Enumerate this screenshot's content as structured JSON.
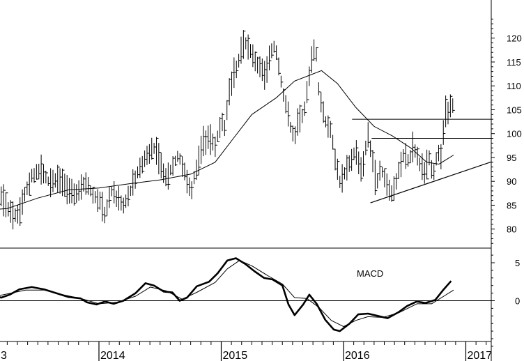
{
  "chart_data": [
    {
      "type": "ohlc",
      "panel": "price",
      "ylim": [
        75,
        125
      ],
      "yticks": [
        "80",
        "85",
        "90",
        "95",
        "100",
        "105",
        "110",
        "115",
        "120"
      ],
      "grid": false,
      "moving_average": [
        [
          2012.97,
          83
        ],
        [
          2013.1,
          84
        ],
        [
          2013.25,
          84.3
        ],
        [
          2013.5,
          86.5
        ],
        [
          2013.75,
          88.2
        ],
        [
          2014.0,
          88.6
        ],
        [
          2014.25,
          89.5
        ],
        [
          2014.5,
          90.3
        ],
        [
          2014.75,
          91.5
        ],
        [
          2014.95,
          94
        ],
        [
          2015.1,
          99
        ],
        [
          2015.25,
          104
        ],
        [
          2015.45,
          107.5
        ],
        [
          2015.6,
          111
        ],
        [
          2015.75,
          112.5
        ],
        [
          2015.82,
          113.2
        ],
        [
          2015.95,
          110.5
        ],
        [
          2016.1,
          105.5
        ],
        [
          2016.25,
          101.5
        ],
        [
          2016.4,
          99.5
        ],
        [
          2016.55,
          97
        ],
        [
          2016.68,
          94
        ],
        [
          2016.78,
          93.6
        ],
        [
          2016.9,
          95.5
        ]
      ],
      "price_path": [
        [
          2012.97,
          85
        ],
        [
          2013.05,
          82
        ],
        [
          2013.13,
          84
        ],
        [
          2013.2,
          87
        ],
        [
          2013.27,
          83.5
        ],
        [
          2013.33,
          82.5
        ],
        [
          2013.4,
          87.5
        ],
        [
          2013.45,
          91
        ],
        [
          2013.52,
          92.5
        ],
        [
          2013.6,
          89.5
        ],
        [
          2013.67,
          90.5
        ],
        [
          2013.75,
          88
        ],
        [
          2013.8,
          87
        ],
        [
          2013.85,
          88.5
        ],
        [
          2013.9,
          90
        ],
        [
          2013.95,
          87
        ],
        [
          2014.0,
          86
        ],
        [
          2014.05,
          83
        ],
        [
          2014.1,
          88
        ],
        [
          2014.15,
          86.5
        ],
        [
          2014.2,
          85
        ],
        [
          2014.25,
          87.5
        ],
        [
          2014.3,
          91
        ],
        [
          2014.35,
          93.5
        ],
        [
          2014.4,
          96
        ],
        [
          2014.45,
          97
        ],
        [
          2014.5,
          94
        ],
        [
          2014.55,
          90.5
        ],
        [
          2014.6,
          93
        ],
        [
          2014.65,
          95.5
        ],
        [
          2014.7,
          92
        ],
        [
          2014.75,
          87.5
        ],
        [
          2014.8,
          93
        ],
        [
          2014.85,
          98
        ],
        [
          2014.9,
          99.5
        ],
        [
          2014.95,
          97
        ],
        [
          2015.0,
          103
        ],
        [
          2015.03,
          101
        ],
        [
          2015.06,
          108
        ],
        [
          2015.09,
          111
        ],
        [
          2015.13,
          114
        ],
        [
          2015.17,
          118.5
        ],
        [
          2015.2,
          119
        ],
        [
          2015.24,
          117.5
        ],
        [
          2015.28,
          115
        ],
        [
          2015.32,
          114
        ],
        [
          2015.36,
          112
        ],
        [
          2015.4,
          117
        ],
        [
          2015.44,
          118.5
        ],
        [
          2015.47,
          114
        ],
        [
          2015.5,
          109
        ],
        [
          2015.53,
          106
        ],
        [
          2015.57,
          101
        ],
        [
          2015.6,
          99
        ],
        [
          2015.63,
          103
        ],
        [
          2015.67,
          104
        ],
        [
          2015.7,
          108
        ],
        [
          2015.73,
          114
        ],
        [
          2015.77,
          119.5
        ],
        [
          2015.8,
          108
        ],
        [
          2015.83,
          105
        ],
        [
          2015.87,
          101
        ],
        [
          2015.9,
          101
        ],
        [
          2015.93,
          95
        ],
        [
          2015.97,
          90
        ],
        [
          2016.0,
          91
        ],
        [
          2016.05,
          94
        ],
        [
          2016.1,
          96.5
        ],
        [
          2016.15,
          92
        ],
        [
          2016.2,
          100
        ],
        [
          2016.24,
          94
        ],
        [
          2016.27,
          89
        ],
        [
          2016.3,
          93
        ],
        [
          2016.33,
          91
        ],
        [
          2016.37,
          88
        ],
        [
          2016.4,
          87.5
        ],
        [
          2016.43,
          90
        ],
        [
          2016.47,
          94
        ],
        [
          2016.5,
          96
        ],
        [
          2016.53,
          94
        ],
        [
          2016.57,
          97
        ],
        [
          2016.6,
          96
        ],
        [
          2016.63,
          93
        ],
        [
          2016.67,
          92
        ],
        [
          2016.7,
          95
        ],
        [
          2016.73,
          91
        ],
        [
          2016.77,
          96
        ],
        [
          2016.8,
          95
        ],
        [
          2016.83,
          104
        ],
        [
          2016.87,
          105.5
        ],
        [
          2016.9,
          105.5
        ]
      ],
      "horizontal_lines": [
        {
          "from": 2016.07,
          "to": 2017.2,
          "y": 103
        },
        {
          "from": 2016.23,
          "to": 2017.2,
          "y": 99
        }
      ],
      "trend_line": {
        "from": [
          2016.22,
          85.5
        ],
        "to": [
          2017.2,
          94
        ]
      }
    },
    {
      "type": "line",
      "panel": "indicator",
      "label": "MACD",
      "ylim": [
        -7,
        7
      ],
      "yticks": [
        "5",
        "0"
      ],
      "zero_line": true,
      "series": [
        {
          "width": "thick",
          "points": [
            [
              2012.97,
              0.4
            ],
            [
              2013.05,
              0.3
            ],
            [
              2013.12,
              0.9
            ],
            [
              2013.2,
              0.4
            ],
            [
              2013.27,
              0.8
            ],
            [
              2013.35,
              1.5
            ],
            [
              2013.45,
              1.8
            ],
            [
              2013.55,
              1.5
            ],
            [
              2013.65,
              1.0
            ],
            [
              2013.75,
              0.5
            ],
            [
              2013.85,
              0.3
            ],
            [
              2013.9,
              -0.2
            ],
            [
              2013.98,
              -0.5
            ],
            [
              2014.05,
              -0.1
            ],
            [
              2014.12,
              -0.4
            ],
            [
              2014.2,
              0.0
            ],
            [
              2014.3,
              1.0
            ],
            [
              2014.38,
              2.3
            ],
            [
              2014.45,
              2.0
            ],
            [
              2014.53,
              1.2
            ],
            [
              2014.6,
              1.1
            ],
            [
              2014.66,
              0.0
            ],
            [
              2014.72,
              0.4
            ],
            [
              2014.8,
              1.9
            ],
            [
              2014.9,
              2.5
            ],
            [
              2014.97,
              3.6
            ],
            [
              2015.05,
              5.3
            ],
            [
              2015.12,
              5.6
            ],
            [
              2015.2,
              4.8
            ],
            [
              2015.27,
              3.9
            ],
            [
              2015.35,
              3.0
            ],
            [
              2015.42,
              2.8
            ],
            [
              2015.5,
              2.0
            ],
            [
              2015.55,
              -0.5
            ],
            [
              2015.6,
              -1.9
            ],
            [
              2015.67,
              -0.5
            ],
            [
              2015.72,
              0.8
            ],
            [
              2015.78,
              -0.4
            ],
            [
              2015.85,
              -2.5
            ],
            [
              2015.92,
              -3.8
            ],
            [
              2015.97,
              -4.0
            ],
            [
              2016.05,
              -3.0
            ],
            [
              2016.12,
              -1.8
            ],
            [
              2016.2,
              -1.7
            ],
            [
              2016.28,
              -2.0
            ],
            [
              2016.36,
              -2.3
            ],
            [
              2016.45,
              -1.5
            ],
            [
              2016.52,
              -0.7
            ],
            [
              2016.6,
              -0.1
            ],
            [
              2016.67,
              -0.3
            ],
            [
              2016.75,
              0.1
            ],
            [
              2016.82,
              1.5
            ],
            [
              2016.88,
              2.6
            ]
          ]
        },
        {
          "width": "thin",
          "points": [
            [
              2012.97,
              0.6
            ],
            [
              2013.1,
              0.4
            ],
            [
              2013.25,
              0.9
            ],
            [
              2013.4,
              1.4
            ],
            [
              2013.55,
              1.4
            ],
            [
              2013.7,
              0.8
            ],
            [
              2013.85,
              0.3
            ],
            [
              2014.0,
              -0.4
            ],
            [
              2014.15,
              -0.2
            ],
            [
              2014.3,
              0.6
            ],
            [
              2014.42,
              1.8
            ],
            [
              2014.55,
              1.3
            ],
            [
              2014.68,
              0.2
            ],
            [
              2014.8,
              1.1
            ],
            [
              2014.95,
              2.4
            ],
            [
              2015.05,
              4.2
            ],
            [
              2015.15,
              5.3
            ],
            [
              2015.25,
              4.6
            ],
            [
              2015.38,
              3.3
            ],
            [
              2015.5,
              2.2
            ],
            [
              2015.6,
              0.4
            ],
            [
              2015.7,
              0.3
            ],
            [
              2015.8,
              -0.9
            ],
            [
              2015.9,
              -2.6
            ],
            [
              2016.0,
              -3.4
            ],
            [
              2016.1,
              -2.6
            ],
            [
              2016.2,
              -2.1
            ],
            [
              2016.32,
              -2.2
            ],
            [
              2016.45,
              -1.6
            ],
            [
              2016.6,
              -0.4
            ],
            [
              2016.72,
              -0.4
            ],
            [
              2016.82,
              0.6
            ],
            [
              2016.9,
              1.4
            ]
          ]
        }
      ]
    },
    {
      "type": "axis",
      "panel": "time",
      "xlim": [
        2012.97,
        2017.0
      ],
      "labels": [
        {
          "x": 2013.0,
          "text": "3"
        },
        {
          "x": 2014.0,
          "text": "2014"
        },
        {
          "x": 2015.0,
          "text": "2015"
        },
        {
          "x": 2016.0,
          "text": "2016"
        },
        {
          "x": 2017.0,
          "text": "2017"
        }
      ]
    }
  ]
}
